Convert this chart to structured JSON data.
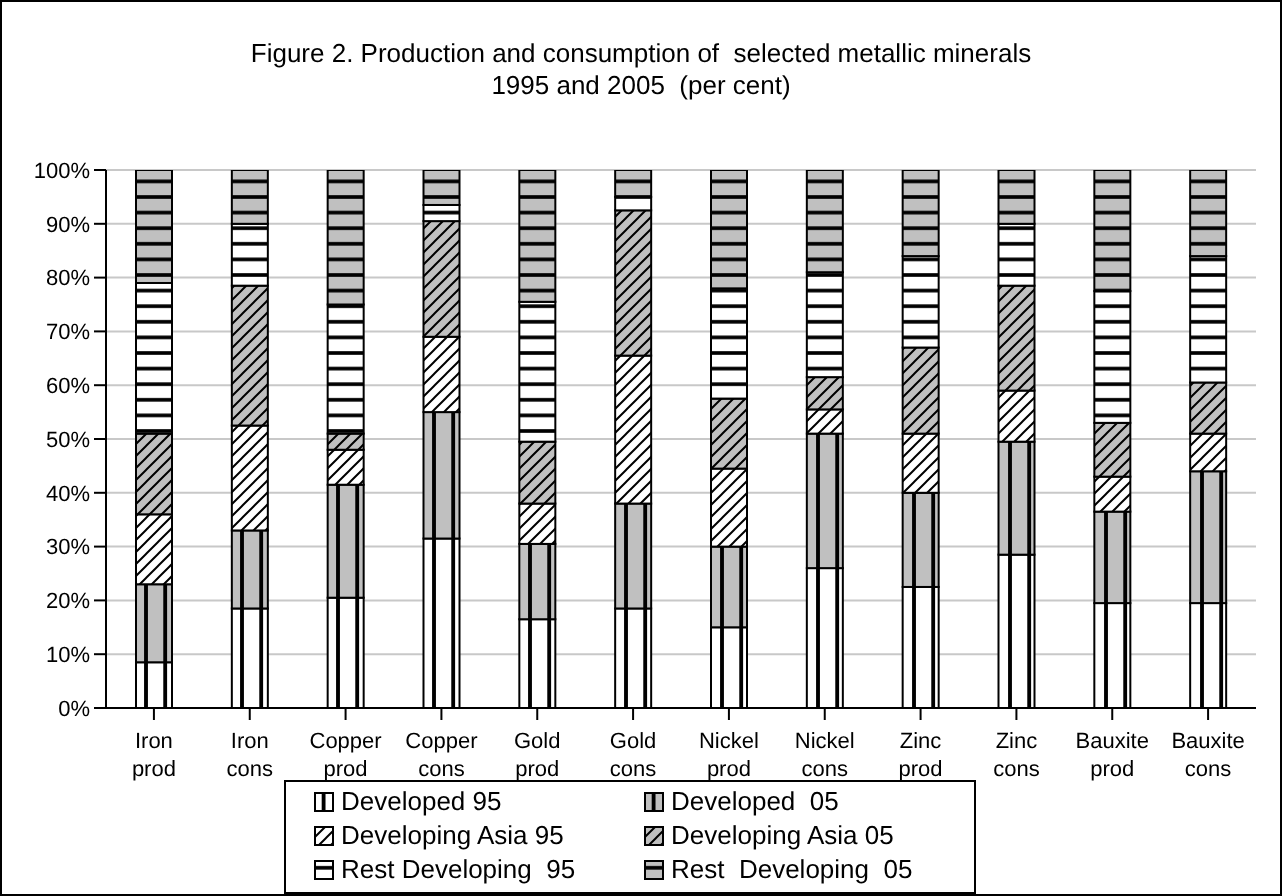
{
  "chart_data": {
    "type": "bar",
    "stacked": true,
    "title": "Figure 2. Production and consumption of  selected metallic minerals\n1995 and 2005  (per cent)",
    "categories": [
      "Iron prod",
      "Iron cons",
      "Copper prod",
      "Copper cons",
      "Gold prod",
      "Gold cons",
      "Nickel prod",
      "Nickel cons",
      "Zinc prod",
      "Zinc cons",
      "Bauxite prod",
      "Bauxite cons"
    ],
    "series": [
      {
        "name": "Developed 95",
        "color": "#ffffff",
        "values": [
          8.5,
          18.5,
          20.5,
          31.5,
          16.5,
          18.5,
          15,
          26,
          22.5,
          28.5,
          19.5,
          19.5
        ]
      },
      {
        "name": "Developed  05",
        "color": "#c0c0c0",
        "values": [
          14.5,
          14.5,
          21,
          23.5,
          14,
          19.5,
          15,
          25,
          17.5,
          21,
          17,
          24.5
        ]
      },
      {
        "name": "Developing Asia 95",
        "color": "#ffffff",
        "values": [
          13,
          19.5,
          6.5,
          14,
          7.5,
          27.5,
          14.5,
          4.5,
          11,
          9.5,
          6.5,
          7
        ]
      },
      {
        "name": "Developing Asia 05",
        "color": "#c0c0c0",
        "values": [
          15,
          26,
          3,
          21.5,
          11.5,
          27,
          13,
          6,
          16,
          19.5,
          10,
          9.5
        ]
      },
      {
        "name": "Rest Developing  95",
        "color": "#ffffff",
        "values": [
          28,
          11.5,
          24,
          3,
          26,
          2.5,
          20.5,
          19.5,
          17,
          11.5,
          24.5,
          23.5
        ]
      },
      {
        "name": "Rest  Developing  05",
        "color": "#c0c0c0",
        "values": [
          21,
          10,
          25,
          6.5,
          24.5,
          5,
          22,
          19,
          16,
          10,
          22.5,
          16
        ]
      }
    ],
    "ylim": [
      0,
      100
    ],
    "yticks": [
      {
        "value": 0,
        "label": "0%"
      },
      {
        "value": 10,
        "label": "10%"
      },
      {
        "value": 20,
        "label": "20%"
      },
      {
        "value": 30,
        "label": "30%"
      },
      {
        "value": 40,
        "label": "40%"
      },
      {
        "value": 50,
        "label": "50%"
      },
      {
        "value": 60,
        "label": "60%"
      },
      {
        "value": 70,
        "label": "70%"
      },
      {
        "value": 80,
        "label": "80%"
      },
      {
        "value": 90,
        "label": "90%"
      },
      {
        "value": 100,
        "label": "100%"
      }
    ],
    "grid": "y",
    "legend": "bottom"
  }
}
